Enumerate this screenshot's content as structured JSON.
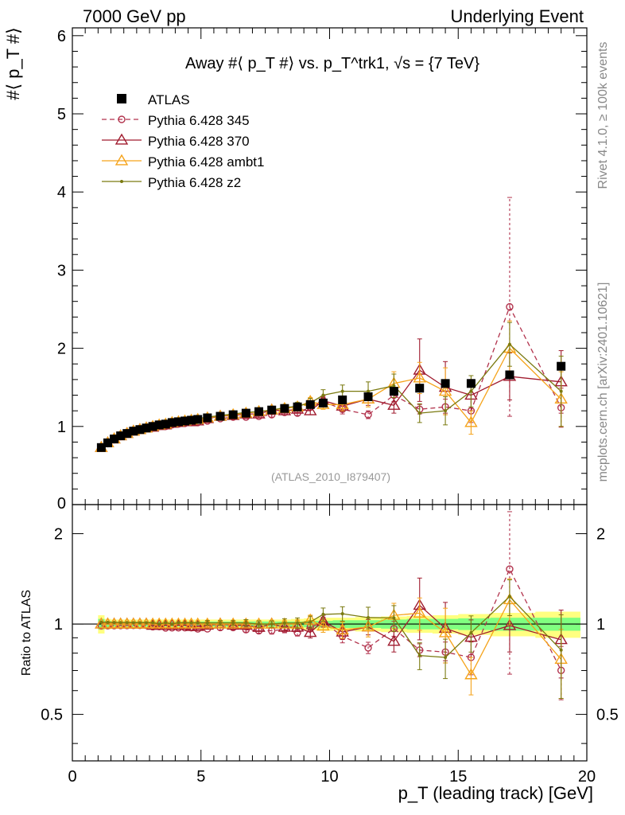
{
  "header": {
    "left": "7000 GeV pp",
    "right": "Underlying Event"
  },
  "side_text": {
    "rivet": "Rivet 4.1.0, ≥ 100k events",
    "mcplots": "mcplots.cern.ch [arXiv:2401.10621]"
  },
  "chart_data": {
    "type": "scatter",
    "title": "Away #⟨ p_T #⟩ vs. p_T^trk1, √s = {7 TeV}",
    "analysis_label": "(ATLAS_2010_I879407)",
    "xlabel": "p_T (leading track) [GeV]",
    "ylabel_main": "#⟨ p_T #⟩",
    "ylabel_ratio": "Ratio to ATLAS",
    "xlim": [
      0,
      20
    ],
    "ylim_main": [
      0,
      6.1
    ],
    "ylim_ratio": [
      0.35,
      2.5
    ],
    "main_y_ticks": [
      "1",
      "2",
      "3",
      "4",
      "5",
      "6"
    ],
    "main_y_zero_label": "0",
    "ratio_y_ticks": [
      "0.5",
      "1",
      "2"
    ],
    "x_ticks": [
      "0",
      "5",
      "10",
      "15",
      "20"
    ],
    "x": [
      1.125,
      1.375,
      1.625,
      1.875,
      2.125,
      2.375,
      2.625,
      2.875,
      3.125,
      3.375,
      3.625,
      3.875,
      4.125,
      4.375,
      4.625,
      4.875,
      5.25,
      5.75,
      6.25,
      6.75,
      7.25,
      7.75,
      8.25,
      8.75,
      9.25,
      9.75,
      10.5,
      11.5,
      12.5,
      13.5,
      14.5,
      15.5,
      17.0,
      19.0
    ],
    "reference": {
      "name": "ATLAS",
      "color": "#000000",
      "values": [
        0.73,
        0.79,
        0.84,
        0.88,
        0.91,
        0.94,
        0.96,
        0.98,
        1.0,
        1.02,
        1.03,
        1.05,
        1.06,
        1.07,
        1.08,
        1.09,
        1.11,
        1.13,
        1.15,
        1.17,
        1.19,
        1.21,
        1.23,
        1.25,
        1.28,
        1.3,
        1.34,
        1.38,
        1.45,
        1.49,
        1.55,
        1.55,
        1.66,
        1.77
      ],
      "ratio_band_inner": [
        0.04,
        0.025,
        0.02,
        0.02,
        0.02,
        0.02,
        0.02,
        0.02,
        0.02,
        0.02,
        0.02,
        0.02,
        0.02,
        0.02,
        0.02,
        0.02,
        0.02,
        0.02,
        0.02,
        0.02,
        0.02,
        0.02,
        0.02,
        0.02,
        0.025,
        0.025,
        0.03,
        0.03,
        0.035,
        0.04,
        0.04,
        0.045,
        0.05,
        0.05
      ],
      "ratio_band_outer": [
        0.07,
        0.04,
        0.035,
        0.035,
        0.035,
        0.035,
        0.035,
        0.035,
        0.035,
        0.035,
        0.035,
        0.035,
        0.035,
        0.035,
        0.035,
        0.035,
        0.035,
        0.035,
        0.035,
        0.035,
        0.035,
        0.035,
        0.035,
        0.04,
        0.045,
        0.05,
        0.05,
        0.055,
        0.06,
        0.065,
        0.07,
        0.08,
        0.09,
        0.1
      ]
    },
    "series": [
      {
        "name": "Pythia 6.428 345",
        "color": "#b2334d",
        "marker": "circle-open",
        "dashed": true,
        "values": [
          0.72,
          0.78,
          0.83,
          0.87,
          0.9,
          0.93,
          0.95,
          0.97,
          0.98,
          1.0,
          1.0,
          1.02,
          1.03,
          1.04,
          1.05,
          1.05,
          1.07,
          1.1,
          1.12,
          1.12,
          1.13,
          1.15,
          1.18,
          1.17,
          1.25,
          1.32,
          1.22,
          1.15,
          1.4,
          1.22,
          1.25,
          1.2,
          2.53,
          1.24
        ],
        "errors": [
          0.01,
          0.01,
          0.01,
          0.01,
          0.01,
          0.01,
          0.01,
          0.01,
          0.01,
          0.01,
          0.01,
          0.01,
          0.01,
          0.01,
          0.01,
          0.01,
          0.01,
          0.02,
          0.02,
          0.02,
          0.02,
          0.03,
          0.03,
          0.03,
          0.04,
          0.05,
          0.06,
          0.05,
          0.08,
          0.06,
          0.1,
          0.15,
          1.4,
          0.25
        ]
      },
      {
        "name": "Pythia 6.428 370",
        "color": "#a01b2e",
        "marker": "triangle-open",
        "dashed": false,
        "values": [
          0.73,
          0.79,
          0.84,
          0.88,
          0.91,
          0.94,
          0.96,
          0.98,
          0.99,
          1.01,
          1.02,
          1.04,
          1.05,
          1.06,
          1.06,
          1.07,
          1.1,
          1.13,
          1.14,
          1.16,
          1.16,
          1.21,
          1.2,
          1.22,
          1.2,
          1.33,
          1.26,
          1.35,
          1.27,
          1.72,
          1.5,
          1.4,
          1.64,
          1.57
        ],
        "errors": [
          0.01,
          0.01,
          0.01,
          0.01,
          0.01,
          0.01,
          0.01,
          0.01,
          0.01,
          0.01,
          0.01,
          0.01,
          0.01,
          0.01,
          0.01,
          0.01,
          0.02,
          0.02,
          0.02,
          0.03,
          0.03,
          0.03,
          0.03,
          0.04,
          0.05,
          0.06,
          0.07,
          0.08,
          0.1,
          0.4,
          0.33,
          0.2,
          0.3,
          0.4
        ]
      },
      {
        "name": "Pythia 6.428 ambt1",
        "color": "#f5a31a",
        "marker": "triangle-open",
        "dashed": false,
        "values": [
          0.73,
          0.79,
          0.84,
          0.88,
          0.91,
          0.94,
          0.96,
          0.98,
          1.0,
          1.02,
          1.03,
          1.05,
          1.06,
          1.07,
          1.08,
          1.09,
          1.11,
          1.13,
          1.15,
          1.17,
          1.19,
          1.21,
          1.23,
          1.25,
          1.32,
          1.28,
          1.28,
          1.35,
          1.55,
          1.62,
          1.45,
          1.05,
          2.0,
          1.35
        ],
        "errors": [
          0.01,
          0.01,
          0.01,
          0.01,
          0.01,
          0.01,
          0.01,
          0.01,
          0.01,
          0.01,
          0.01,
          0.01,
          0.01,
          0.01,
          0.01,
          0.01,
          0.02,
          0.02,
          0.02,
          0.02,
          0.03,
          0.03,
          0.03,
          0.04,
          0.05,
          0.06,
          0.08,
          0.1,
          0.15,
          0.2,
          0.3,
          0.15,
          0.35,
          0.35
        ]
      },
      {
        "name": "Pythia 6.428 z2",
        "color": "#7a7a10",
        "marker": "dot",
        "dashed": false,
        "values": [
          0.74,
          0.8,
          0.85,
          0.89,
          0.92,
          0.95,
          0.97,
          0.99,
          1.01,
          1.02,
          1.04,
          1.05,
          1.07,
          1.08,
          1.09,
          1.1,
          1.12,
          1.14,
          1.16,
          1.18,
          1.19,
          1.21,
          1.24,
          1.26,
          1.3,
          1.4,
          1.45,
          1.45,
          1.52,
          1.17,
          1.2,
          1.45,
          2.05,
          1.45
        ],
        "errors": [
          0.01,
          0.01,
          0.01,
          0.01,
          0.01,
          0.01,
          0.01,
          0.01,
          0.01,
          0.01,
          0.01,
          0.01,
          0.01,
          0.01,
          0.01,
          0.01,
          0.02,
          0.02,
          0.02,
          0.03,
          0.03,
          0.03,
          0.04,
          0.05,
          0.06,
          0.07,
          0.08,
          0.12,
          0.15,
          0.12,
          0.18,
          0.2,
          0.28,
          0.45
        ]
      }
    ]
  }
}
